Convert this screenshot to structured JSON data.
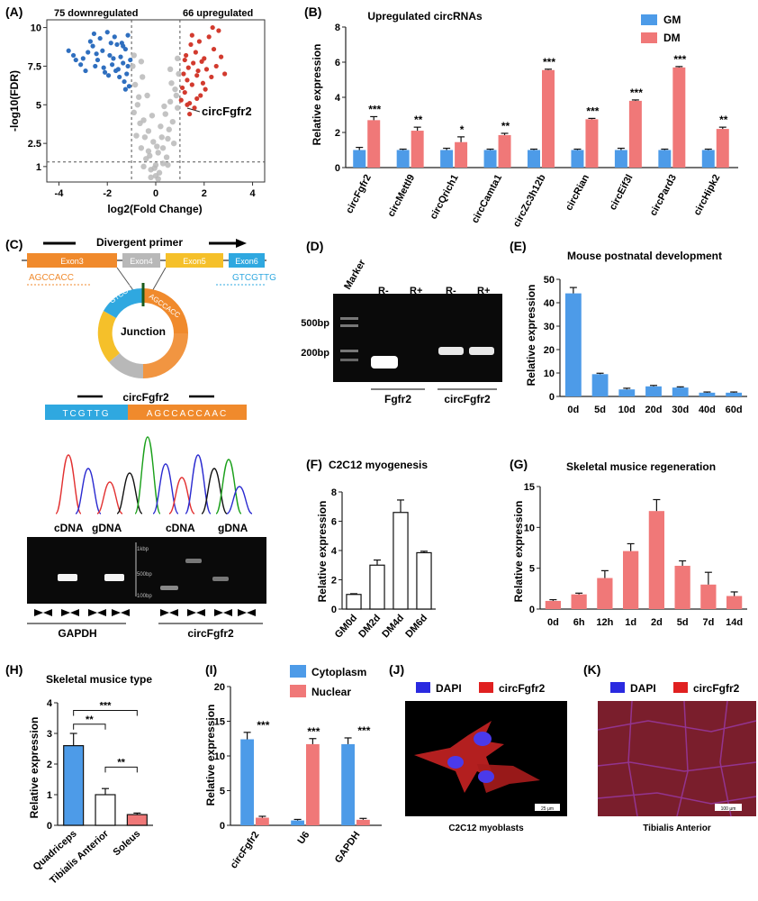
{
  "colors": {
    "blue": "#4d9be8",
    "red": "#f07878",
    "dark_red": "#d23a2e",
    "scatter_blue": "#2f6fbf",
    "grey": "#b8b8b8",
    "gel_band": "#ffffff"
  },
  "panels": {
    "A": {
      "tag": "(A)",
      "left_label": "75 downregulated",
      "right_label": "66 upregulated",
      "annotation": "circFgfr2"
    },
    "C": {
      "tag": "(C)",
      "title": "Divergent primer",
      "exons": [
        "Exon3",
        "Exon4",
        "Exon5",
        "Exon6"
      ],
      "seq_left": "AGCCACC",
      "seq_right": "GTCGTTG",
      "ring_left": "GTCGTTG",
      "ring_right": "AGCCACC",
      "junction": "Junction",
      "seq_title": "circFgfr2",
      "seq_bar_left": "TCGTTG",
      "seq_bar_right": "AGCCACCAAC",
      "gel_labels": [
        "cDNA",
        "gDNA",
        "cDNA",
        "gDNA"
      ],
      "ladder": [
        "1kbp",
        "500bp",
        "100bp"
      ],
      "gene_left": "GAPDH",
      "gene_right": "circFgfr2"
    },
    "D": {
      "tag": "(D)",
      "marker": "Marker",
      "lanes": [
        "R-",
        "R+",
        "R-",
        "R+"
      ],
      "sizes": [
        "500bp",
        "200bp"
      ],
      "groups": [
        "Fgfr2",
        "circFgfr2"
      ]
    },
    "J": {
      "tag": "(J)",
      "legend": [
        "DAPI",
        "circFgfr2"
      ],
      "caption": "C2C12 myoblasts",
      "scale": "25 μm"
    },
    "K": {
      "tag": "(K)",
      "legend": [
        "DAPI",
        "circFgfr2"
      ],
      "caption": "Tibialis Anterior",
      "scale": "100 μm"
    }
  },
  "chart_data": [
    {
      "id": "A",
      "type": "scatter",
      "xlabel": "log2(Fold Change)",
      "ylabel": "-log10(FDR)",
      "xlim": [
        -4.5,
        4.5
      ],
      "ylim": [
        0,
        10.5
      ],
      "xticks": [
        -4,
        -2,
        0,
        2,
        4
      ],
      "yticks": [
        1,
        2.5,
        5,
        7.5,
        10
      ],
      "thresholds": {
        "x": [
          -1,
          1
        ],
        "y": 1.3
      },
      "series": [
        {
          "name": "downregulated",
          "count": 75,
          "points": [
            [
              -3.6,
              8.5
            ],
            [
              -3.4,
              8.2
            ],
            [
              -3.3,
              7.9
            ],
            [
              -3.1,
              7.6
            ],
            [
              -3.0,
              8.0
            ],
            [
              -2.9,
              7.2
            ],
            [
              -2.8,
              8.4
            ],
            [
              -2.7,
              9.1
            ],
            [
              -2.6,
              8.8
            ],
            [
              -2.5,
              7.5
            ],
            [
              -2.4,
              7.9
            ],
            [
              -2.3,
              9.3
            ],
            [
              -2.2,
              8.5
            ],
            [
              -2.1,
              7.1
            ],
            [
              -2.0,
              9.7
            ],
            [
              -1.9,
              8.2
            ],
            [
              -1.8,
              7.6
            ],
            [
              -1.7,
              9.4
            ],
            [
              -1.6,
              8.9
            ],
            [
              -1.55,
              7.3
            ],
            [
              -1.5,
              6.8
            ],
            [
              -1.45,
              8.1
            ],
            [
              -1.4,
              9.0
            ],
            [
              -1.35,
              7.7
            ],
            [
              -1.3,
              6.5
            ],
            [
              -1.25,
              8.6
            ],
            [
              -1.2,
              7.0
            ],
            [
              -1.15,
              9.5
            ],
            [
              -1.1,
              6.2
            ],
            [
              -1.05,
              7.9
            ],
            [
              -2.45,
              8.3
            ],
            [
              -2.15,
              7.4
            ],
            [
              -1.95,
              6.9
            ],
            [
              -1.75,
              8.0
            ],
            [
              -1.65,
              7.2
            ],
            [
              -1.85,
              9.0
            ],
            [
              -2.55,
              9.6
            ],
            [
              -1.35,
              8.8
            ],
            [
              -1.25,
              6.0
            ],
            [
              -1.15,
              7.5
            ]
          ]
        },
        {
          "name": "upregulated",
          "count": 66,
          "points": [
            [
              1.05,
              5.3
            ],
            [
              1.1,
              6.1
            ],
            [
              1.15,
              7.0
            ],
            [
              1.2,
              5.8
            ],
            [
              1.25,
              8.2
            ],
            [
              1.3,
              6.6
            ],
            [
              1.35,
              7.4
            ],
            [
              1.4,
              5.1
            ],
            [
              1.45,
              8.9
            ],
            [
              1.5,
              6.3
            ],
            [
              1.55,
              7.7
            ],
            [
              1.6,
              4.8
            ],
            [
              1.65,
              8.4
            ],
            [
              1.7,
              6.9
            ],
            [
              1.75,
              7.2
            ],
            [
              1.8,
              9.1
            ],
            [
              1.85,
              5.6
            ],
            [
              1.9,
              7.8
            ],
            [
              1.95,
              6.4
            ],
            [
              2.0,
              8.0
            ],
            [
              2.1,
              7.3
            ],
            [
              2.2,
              9.4
            ],
            [
              2.3,
              6.8
            ],
            [
              2.4,
              8.6
            ],
            [
              2.5,
              7.5
            ],
            [
              2.6,
              9.8
            ],
            [
              2.7,
              8.1
            ],
            [
              2.85,
              7.0
            ],
            [
              1.3,
              5.0
            ],
            [
              1.5,
              9.5
            ],
            [
              1.2,
              7.9
            ],
            [
              1.7,
              5.4
            ],
            [
              2.05,
              6.0
            ],
            [
              1.4,
              4.4
            ],
            [
              2.35,
              10.0
            ]
          ]
        },
        {
          "name": "not significant",
          "points": [
            [
              -0.9,
              4.5
            ],
            [
              -0.8,
              3.0
            ],
            [
              -0.7,
              5.5
            ],
            [
              -0.6,
              2.2
            ],
            [
              -0.5,
              4.0
            ],
            [
              -0.4,
              1.5
            ],
            [
              -0.3,
              3.3
            ],
            [
              -0.2,
              0.8
            ],
            [
              -0.1,
              2.6
            ],
            [
              0.0,
              0.4
            ],
            [
              0.1,
              1.9
            ],
            [
              0.2,
              3.6
            ],
            [
              0.3,
              1.2
            ],
            [
              0.4,
              4.4
            ],
            [
              0.5,
              2.8
            ],
            [
              0.6,
              5.2
            ],
            [
              0.7,
              3.9
            ],
            [
              0.8,
              6.0
            ],
            [
              0.9,
              4.8
            ],
            [
              -0.85,
              6.3
            ],
            [
              -0.75,
              5.0
            ],
            [
              -0.65,
              3.8
            ],
            [
              -0.55,
              6.8
            ],
            [
              -0.45,
              2.9
            ],
            [
              -0.35,
              5.6
            ],
            [
              -0.25,
              1.7
            ],
            [
              -0.15,
              4.3
            ],
            [
              -0.05,
              0.9
            ],
            [
              0.05,
              2.3
            ],
            [
              0.15,
              0.6
            ],
            [
              0.25,
              2.9
            ],
            [
              0.35,
              4.9
            ],
            [
              0.45,
              1.6
            ],
            [
              0.55,
              3.4
            ],
            [
              0.65,
              6.4
            ],
            [
              0.75,
              2.5
            ],
            [
              0.85,
              5.6
            ],
            [
              0.95,
              7.0
            ],
            [
              -0.95,
              7.5
            ],
            [
              -0.9,
              8.2
            ],
            [
              0.9,
              8.0
            ],
            [
              0.6,
              7.3
            ],
            [
              -0.6,
              7.8
            ],
            [
              -0.2,
              0.3
            ],
            [
              0.1,
              0.2
            ],
            [
              0.0,
              1.1
            ],
            [
              -0.3,
              2.0
            ],
            [
              0.3,
              2.2
            ],
            [
              0.5,
              1.1
            ],
            [
              -0.5,
              1.0
            ]
          ]
        }
      ]
    },
    {
      "id": "B",
      "type": "bar",
      "title": "Upregulated circRNAs",
      "ylabel": "Relative expression",
      "ylim": [
        0,
        8
      ],
      "yticks": [
        0,
        2,
        4,
        6,
        8
      ],
      "categories": [
        "circFgfr2",
        "circMettl9",
        "circQrich1",
        "circCamta1",
        "circZc3h12b",
        "circRian",
        "circEif3l",
        "circPard3",
        "circHipk2"
      ],
      "series": [
        {
          "name": "GM",
          "values": [
            1.0,
            1.0,
            1.0,
            1.0,
            1.0,
            1.0,
            1.0,
            1.0,
            1.0
          ],
          "errors": [
            0.15,
            0.05,
            0.1,
            0.05,
            0.05,
            0.05,
            0.1,
            0.05,
            0.05
          ]
        },
        {
          "name": "DM",
          "values": [
            2.7,
            2.1,
            1.45,
            1.85,
            5.55,
            2.75,
            3.8,
            5.7,
            2.2
          ],
          "errors": [
            0.2,
            0.2,
            0.3,
            0.1,
            0.05,
            0.05,
            0.05,
            0.05,
            0.1
          ]
        }
      ],
      "significance": [
        "***",
        "**",
        "*",
        "**",
        "***",
        "***",
        "***",
        "***",
        "**"
      ]
    },
    {
      "id": "E",
      "type": "bar",
      "title": "Mouse postnatal development",
      "ylabel": "Relative expression",
      "ylim": [
        0,
        50
      ],
      "yticks": [
        0,
        10,
        20,
        30,
        40,
        50
      ],
      "categories": [
        "0d",
        "5d",
        "10d",
        "20d",
        "30d",
        "40d",
        "60d"
      ],
      "values": [
        44,
        9.5,
        3.0,
        4.3,
        3.8,
        1.6,
        1.6
      ],
      "errors": [
        2.5,
        0.4,
        0.5,
        0.4,
        0.3,
        0.3,
        0.3
      ]
    },
    {
      "id": "F",
      "type": "bar",
      "title": "C2C12 myogenesis",
      "ylabel": "Relative expression",
      "ylim": [
        0,
        8
      ],
      "yticks": [
        0,
        2,
        4,
        6,
        8
      ],
      "categories": [
        "GM0d",
        "DM2d",
        "DM4d",
        "DM6d"
      ],
      "values": [
        1.0,
        3.0,
        6.6,
        3.85
      ],
      "errors": [
        0.05,
        0.35,
        0.85,
        0.1
      ]
    },
    {
      "id": "G",
      "type": "bar",
      "title": "Skeletal musice regeneration",
      "ylabel": "Relative expression",
      "ylim": [
        0,
        15
      ],
      "yticks": [
        0,
        5,
        10,
        15
      ],
      "categories": [
        "0d",
        "6h",
        "12h",
        "1d",
        "2d",
        "5d",
        "7d",
        "14d"
      ],
      "values": [
        1.0,
        1.8,
        3.8,
        7.1,
        12.0,
        5.3,
        3.0,
        1.6
      ],
      "errors": [
        0.15,
        0.15,
        0.9,
        0.9,
        1.4,
        0.6,
        1.5,
        0.5
      ]
    },
    {
      "id": "H",
      "type": "bar",
      "title": "Skeletal musice type",
      "ylabel": "Relative expression",
      "ylim": [
        0,
        4
      ],
      "yticks": [
        0,
        1,
        2,
        3,
        4
      ],
      "categories": [
        "Quadriceps",
        "Tibialis Anterior",
        "Soleus"
      ],
      "values": [
        2.6,
        1.0,
        0.35
      ],
      "errors": [
        0.4,
        0.2,
        0.05
      ],
      "comparisons": [
        {
          "a": 0,
          "b": 1,
          "label": "**"
        },
        {
          "a": 0,
          "b": 2,
          "label": "***"
        },
        {
          "a": 1,
          "b": 2,
          "label": "**"
        }
      ]
    },
    {
      "id": "I",
      "type": "bar",
      "ylabel": "Relative expression",
      "ylim": [
        0,
        20
      ],
      "yticks": [
        0,
        5,
        10,
        15,
        20
      ],
      "categories": [
        "circFgfr2",
        "U6",
        "GAPDH"
      ],
      "series": [
        {
          "name": "Cytoplasm",
          "values": [
            12.4,
            0.7,
            11.7
          ],
          "errors": [
            1.0,
            0.15,
            0.9
          ]
        },
        {
          "name": "Nuclear",
          "values": [
            1.1,
            11.7,
            0.8
          ],
          "errors": [
            0.2,
            0.8,
            0.2
          ]
        }
      ],
      "significance": [
        "***",
        "***",
        "***"
      ]
    }
  ]
}
